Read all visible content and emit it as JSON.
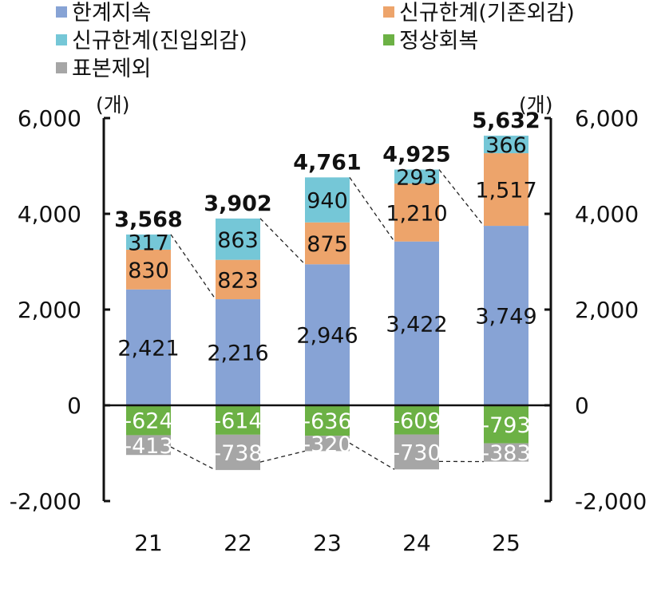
{
  "legend": [
    {
      "key": "continue",
      "label": "한계지속",
      "color": "#87A3D5"
    },
    {
      "key": "new_existing",
      "label": "신규한계(기존외감)",
      "color": "#EDA46B"
    },
    {
      "key": "new_entry",
      "label": "신규한계(진입외감)",
      "color": "#75C7D7"
    },
    {
      "key": "recovered",
      "label": "정상회복",
      "color": "#6CB145"
    },
    {
      "key": "excluded",
      "label": "표본제외",
      "color": "#A6A6A6"
    }
  ],
  "unit_left": "(개)",
  "unit_right": "(개)",
  "chart_data": {
    "type": "bar",
    "stacked": true,
    "categories": [
      "21",
      "22",
      "23",
      "24",
      "25"
    ],
    "series": [
      {
        "key": "continue",
        "name": "한계지속",
        "color": "#87A3D5",
        "values": [
          2421,
          2216,
          2946,
          3422,
          3749
        ],
        "labels": [
          "2,421",
          "2,216",
          "2,946",
          "3,422",
          "3,749"
        ]
      },
      {
        "key": "new_existing",
        "name": "신규한계(기존외감)",
        "color": "#EDA46B",
        "values": [
          830,
          823,
          875,
          1210,
          1517
        ],
        "labels": [
          "830",
          "823",
          "875",
          "1,210",
          "1,517"
        ]
      },
      {
        "key": "new_entry",
        "name": "신규한계(진입외감)",
        "color": "#75C7D7",
        "values": [
          317,
          863,
          940,
          293,
          366
        ],
        "labels": [
          "317",
          "863",
          "940",
          "293",
          "366"
        ]
      },
      {
        "key": "recovered",
        "name": "정상회복",
        "color": "#6CB145",
        "values": [
          -624,
          -614,
          -636,
          -609,
          -793
        ],
        "labels": [
          "-624",
          "-614",
          "-636",
          "-609",
          "-793"
        ]
      },
      {
        "key": "excluded",
        "name": "표본제외",
        "color": "#A6A6A6",
        "values": [
          -413,
          -738,
          -320,
          -730,
          -383
        ],
        "labels": [
          "-413",
          "-738",
          "-320",
          "-730",
          "-383"
        ]
      }
    ],
    "totals": [
      3568,
      3902,
      4761,
      4925,
      5632
    ],
    "total_labels": [
      "3,568",
      "3,902",
      "4,761",
      "4,925",
      "5,632"
    ],
    "ylim": [
      -2000,
      6000
    ],
    "yticks": [
      -2000,
      0,
      2000,
      4000,
      6000
    ],
    "ytick_labels": [
      "-2,000",
      "0",
      "2,000",
      "4,000",
      "6,000"
    ],
    "dashed_connectors": true,
    "grid": false,
    "legend_position": "top"
  }
}
